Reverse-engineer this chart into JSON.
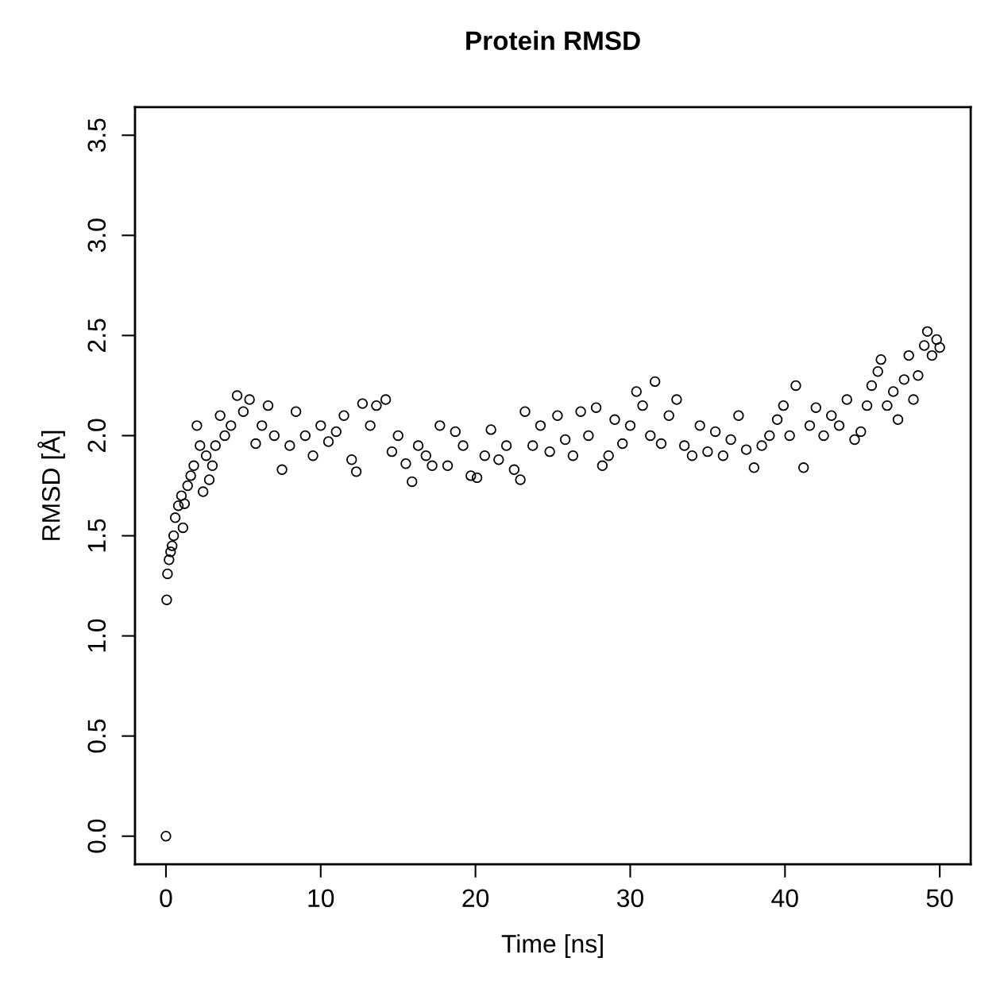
{
  "chart_data": {
    "type": "scatter",
    "title": "Protein RMSD",
    "xlabel": "Time [ns]",
    "ylabel": "RMSD [Å]",
    "xlim": [
      -2,
      52
    ],
    "ylim": [
      -0.14,
      3.64
    ],
    "xticks": [
      0,
      10,
      20,
      30,
      40,
      50
    ],
    "yticks": [
      {
        "value": 0,
        "label": "0.0"
      },
      {
        "value": 0.5,
        "label": "0.5"
      },
      {
        "value": 1,
        "label": "1.0"
      },
      {
        "value": 1.5,
        "label": "1.5"
      },
      {
        "value": 2,
        "label": "2.0"
      },
      {
        "value": 2.5,
        "label": "2.5"
      },
      {
        "value": 3,
        "label": "3.0"
      },
      {
        "value": 3.5,
        "label": "3.5"
      }
    ],
    "grid": false,
    "marker": "circle",
    "series": [
      {
        "color": "#000000",
        "x": [
          0,
          0.05,
          0.1,
          0.2,
          0.3,
          0.4,
          0.5,
          0.6,
          0.8,
          1.0,
          1.2,
          1.1,
          1.4,
          1.6,
          1.8,
          2.0,
          2.2,
          2.4,
          2.6,
          2.8,
          3.0,
          3.2,
          3.5,
          3.8,
          4.2,
          4.6,
          5.0,
          5.4,
          5.8,
          6.2,
          6.6,
          7.0,
          7.5,
          8.0,
          8.4,
          9.0,
          9.5,
          10.0,
          10.5,
          11.0,
          11.5,
          12.0,
          12.3,
          12.7,
          13.2,
          13.6,
          14.2,
          14.6,
          15.0,
          15.5,
          15.9,
          16.3,
          16.8,
          17.2,
          17.7,
          18.2,
          18.7,
          19.2,
          19.7,
          20.1,
          20.6,
          21.0,
          21.5,
          22.0,
          22.5,
          22.9,
          23.2,
          23.7,
          24.2,
          24.8,
          25.3,
          25.8,
          26.3,
          26.8,
          27.3,
          27.8,
          28.2,
          28.6,
          29.0,
          29.5,
          30.0,
          30.4,
          30.8,
          31.3,
          31.6,
          32.0,
          32.5,
          33.0,
          33.5,
          34.0,
          34.5,
          35.0,
          35.5,
          36.0,
          36.5,
          37.0,
          37.5,
          38.0,
          38.5,
          39.0,
          39.5,
          39.9,
          40.3,
          40.7,
          41.2,
          41.6,
          42.0,
          42.5,
          43.0,
          43.5,
          44.0,
          44.5,
          44.9,
          45.3,
          45.6,
          46.0,
          46.2,
          46.6,
          47.0,
          47.3,
          47.7,
          48.0,
          48.3,
          48.6,
          49.0,
          49.2,
          49.5,
          49.8,
          50.0
        ],
        "values": [
          0,
          1.18,
          1.31,
          1.38,
          1.42,
          1.45,
          1.5,
          1.59,
          1.65,
          1.7,
          1.66,
          1.54,
          1.75,
          1.8,
          1.85,
          2.05,
          1.95,
          1.72,
          1.9,
          1.78,
          1.85,
          1.95,
          2.1,
          2.0,
          2.05,
          2.2,
          2.12,
          2.18,
          1.96,
          2.05,
          2.15,
          2.0,
          1.83,
          1.95,
          2.12,
          2.0,
          1.9,
          2.05,
          1.97,
          2.02,
          2.1,
          1.88,
          1.82,
          2.16,
          2.05,
          2.15,
          2.18,
          1.92,
          2.0,
          1.86,
          1.77,
          1.95,
          1.9,
          1.85,
          2.05,
          1.85,
          2.02,
          1.95,
          1.8,
          1.79,
          1.9,
          2.03,
          1.88,
          1.95,
          1.83,
          1.78,
          2.12,
          1.95,
          2.05,
          1.92,
          2.1,
          1.98,
          1.9,
          2.12,
          2.0,
          2.14,
          1.85,
          1.9,
          2.08,
          1.96,
          2.05,
          2.22,
          2.15,
          2.0,
          2.27,
          1.96,
          2.1,
          2.18,
          1.95,
          1.9,
          2.05,
          1.92,
          2.02,
          1.9,
          1.98,
          2.1,
          1.93,
          1.84,
          1.95,
          2.0,
          2.08,
          2.15,
          2.0,
          2.25,
          1.84,
          2.05,
          2.14,
          2.0,
          2.1,
          2.05,
          2.18,
          1.98,
          2.02,
          2.15,
          2.25,
          2.32,
          2.38,
          2.15,
          2.22,
          2.08,
          2.28,
          2.4,
          2.18,
          2.3,
          2.45,
          2.52,
          2.4,
          2.48,
          2.44
        ]
      }
    ]
  }
}
